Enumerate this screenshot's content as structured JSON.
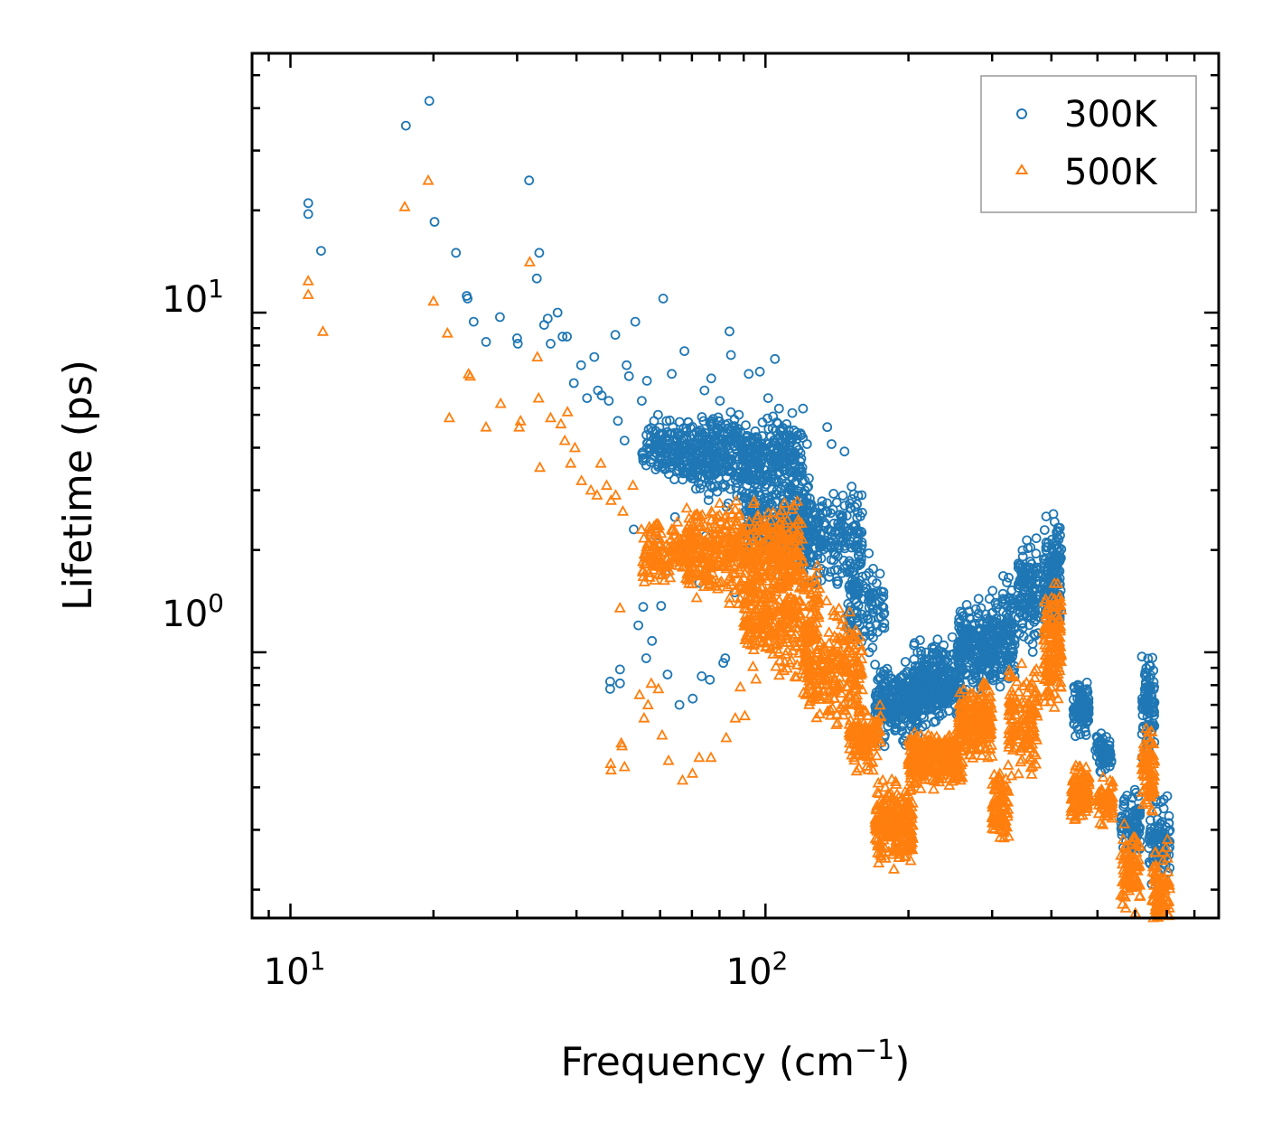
{
  "chart_data": {
    "type": "scatter",
    "title": "",
    "xlabel_main": "Frequency (cm",
    "xlabel_sup": "−1",
    "xlabel_end": ")",
    "ylabel": "Lifetime (ps)",
    "xscale": "log",
    "yscale": "log",
    "xlim": [
      8.3,
      900
    ],
    "ylim": [
      0.165,
      58
    ],
    "x_ticks": [
      {
        "base": "10",
        "exp": "1",
        "value": 10
      },
      {
        "base": "10",
        "exp": "2",
        "value": 100
      }
    ],
    "y_ticks": [
      {
        "base": "10",
        "exp": "0",
        "value": 1
      },
      {
        "base": "10",
        "exp": "1",
        "value": 10
      }
    ],
    "legend": {
      "location": "top-right",
      "entries": [
        {
          "label": "300K",
          "color": "#1f77b4",
          "marker": "circle"
        },
        {
          "label": "500K",
          "color": "#ff7f0e",
          "marker": "triangle"
        }
      ]
    },
    "series": [
      {
        "name": "300K",
        "color": "#1f77b4",
        "marker": "circle",
        "points": [
          [
            10.9,
            21
          ],
          [
            10.9,
            19.5
          ],
          [
            11.6,
            15.2
          ],
          [
            17.5,
            35.5
          ],
          [
            19.6,
            42
          ],
          [
            20.1,
            18.5
          ],
          [
            22.3,
            15
          ],
          [
            23.5,
            11.2
          ],
          [
            23.6,
            11
          ],
          [
            24.3,
            9.4
          ],
          [
            25.8,
            8.2
          ],
          [
            27.6,
            9.7
          ],
          [
            30.0,
            8.4
          ],
          [
            30.1,
            8.1
          ],
          [
            31.8,
            24.5
          ],
          [
            33.0,
            12.6
          ],
          [
            33.4,
            15
          ],
          [
            34.2,
            9.2
          ],
          [
            34.8,
            9.6
          ],
          [
            35.3,
            8.1
          ],
          [
            36.5,
            10
          ],
          [
            37.4,
            8.5
          ],
          [
            38.2,
            8.5
          ],
          [
            39.5,
            6.2
          ],
          [
            40.9,
            7
          ],
          [
            42.1,
            5.6
          ],
          [
            43.6,
            7.4
          ],
          [
            44.4,
            5.9
          ],
          [
            45.2,
            5.7
          ],
          [
            46.8,
            5.5
          ],
          [
            48.3,
            8.6
          ],
          [
            48.9,
            4.8
          ],
          [
            50.5,
            4.2
          ],
          [
            51.0,
            7
          ],
          [
            51.6,
            6.5
          ],
          [
            53.2,
            9.4
          ],
          [
            54.9,
            5.5
          ],
          [
            56.3,
            6.3
          ],
          [
            59.4,
            5
          ],
          [
            60.9,
            11
          ],
          [
            63.5,
            6.6
          ],
          [
            67.5,
            7.7
          ],
          [
            74.4,
            5.9
          ],
          [
            76.9,
            6.4
          ],
          [
            80.2,
            5.5
          ],
          [
            84.0,
            8.8
          ],
          [
            84.6,
            7.5
          ],
          [
            87.9,
            5
          ],
          [
            92.2,
            6.6
          ],
          [
            97.3,
            6.7
          ],
          [
            101.3,
            5.6
          ],
          [
            104.7,
            7.3
          ],
          [
            111.2,
            4.3
          ],
          [
            114.8,
            4.5
          ],
          [
            122.3,
            4.1
          ],
          [
            134.9,
            4.6
          ],
          [
            137.8,
            4.1
          ],
          [
            146.7,
            3.9
          ],
          [
            159.4,
            2.9
          ],
          [
            47.1,
            0.82
          ],
          [
            47.1,
            0.78
          ],
          [
            49.4,
            0.89
          ],
          [
            49.4,
            0.81
          ],
          [
            54.0,
            1.2
          ],
          [
            55.3,
            1.36
          ],
          [
            56.1,
            0.96
          ],
          [
            57.7,
            1.08
          ],
          [
            60.3,
            1.37
          ],
          [
            62.2,
            0.86
          ],
          [
            65.9,
            0.7
          ],
          [
            70.3,
            0.73
          ],
          [
            73.4,
            0.85
          ],
          [
            76.4,
            0.83
          ],
          [
            81.5,
            0.93
          ],
          [
            82.3,
            0.96
          ],
          [
            52.8,
            2.3
          ],
          [
            55.7,
            1.9
          ],
          [
            58.7,
            2.2
          ],
          [
            61.6,
            1.7
          ],
          [
            64.5,
            2.5
          ],
          [
            68.6,
            2.0
          ],
          [
            72.6,
            1.6
          ],
          [
            74.9,
            2.2
          ],
          [
            79.4,
            1.8
          ],
          [
            86.2,
            1.5
          ],
          [
            91.0,
            1.4
          ],
          [
            147.0,
            1.25
          ],
          [
            151.0,
            1.1
          ],
          [
            165.3,
            1.0
          ],
          [
            170.1,
            0.92
          ]
        ],
        "clusters": [
          {
            "x": [
              55,
              68
            ],
            "y": [
              3.0,
              5.2
            ],
            "n": 140
          },
          {
            "x": [
              68,
              120
            ],
            "y": [
              2.6,
              5.5
            ],
            "n": 520
          },
          {
            "x": [
              90,
              125
            ],
            "y": [
              1.6,
              3.8
            ],
            "n": 260
          },
          {
            "x": [
              118,
              160
            ],
            "y": [
              1.4,
              3.3
            ],
            "n": 220
          },
          {
            "x": [
              148,
              178
            ],
            "y": [
              0.9,
              2.1
            ],
            "n": 110
          },
          {
            "x": [
              170,
              210
            ],
            "y": [
              0.5,
              1.0
            ],
            "n": 240
          },
          {
            "x": [
              205,
              260
            ],
            "y": [
              0.58,
              1.15
            ],
            "n": 320
          },
          {
            "x": [
              255,
              305
            ],
            "y": [
              0.7,
              1.5
            ],
            "n": 220
          },
          {
            "x": [
              300,
              335
            ],
            "y": [
              0.7,
              1.8
            ],
            "n": 130
          },
          {
            "x": [
              340,
              375
            ],
            "y": [
              0.9,
              2.4
            ],
            "n": 130
          },
          {
            "x": [
              385,
              420
            ],
            "y": [
              1.0,
              2.8
            ],
            "n": 150
          },
          {
            "x": [
              445,
              480
            ],
            "y": [
              0.55,
              0.85
            ],
            "n": 110
          },
          {
            "x": [
              495,
              535
            ],
            "y": [
              0.42,
              0.62
            ],
            "n": 60
          },
          {
            "x": [
              560,
              615
            ],
            "y": [
              0.24,
              0.42
            ],
            "n": 90
          },
          {
            "x": [
              620,
              660
            ],
            "y": [
              0.45,
              1.1
            ],
            "n": 90
          },
          {
            "x": [
              640,
              710
            ],
            "y": [
              0.2,
              0.4
            ],
            "n": 90
          }
        ]
      },
      {
        "name": "500K",
        "color": "#ff7f0e",
        "marker": "triangle",
        "points": [
          [
            10.9,
            12.4
          ],
          [
            10.9,
            11.3
          ],
          [
            11.7,
            8.8
          ],
          [
            17.4,
            20.5
          ],
          [
            19.5,
            24.5
          ],
          [
            20.0,
            10.8
          ],
          [
            21.4,
            8.7
          ],
          [
            23.7,
            6.6
          ],
          [
            23.9,
            6.5
          ],
          [
            21.6,
            4.9
          ],
          [
            25.8,
            4.6
          ],
          [
            27.7,
            5.4
          ],
          [
            30.3,
            4.6
          ],
          [
            30.5,
            4.8
          ],
          [
            31.9,
            14.1
          ],
          [
            33.1,
            7.4
          ],
          [
            33.3,
            5.6
          ],
          [
            33.5,
            3.5
          ],
          [
            35.3,
            4.9
          ],
          [
            37.1,
            4.7
          ],
          [
            37.8,
            4.2
          ],
          [
            38.3,
            5.1
          ],
          [
            38.9,
            3.6
          ],
          [
            39.7,
            4.0
          ],
          [
            41.0,
            3.2
          ],
          [
            42.9,
            3.0
          ],
          [
            44.2,
            2.9
          ],
          [
            45.0,
            3.6
          ],
          [
            46.3,
            3.1
          ],
          [
            47.3,
            2.8
          ],
          [
            48.4,
            2.9
          ],
          [
            50.1,
            2.6
          ],
          [
            52.6,
            3.1
          ],
          [
            54.8,
            2.3
          ],
          [
            57.0,
            2.1
          ],
          [
            59.8,
            1.9
          ],
          [
            63.5,
            2.3
          ],
          [
            47.2,
            0.47
          ],
          [
            47.3,
            0.45
          ],
          [
            49.7,
            0.54
          ],
          [
            49.9,
            0.53
          ],
          [
            50.5,
            0.46
          ],
          [
            49.4,
            1.35
          ],
          [
            54.3,
            0.75
          ],
          [
            55.5,
            0.64
          ],
          [
            56.6,
            0.7
          ],
          [
            57.5,
            0.81
          ],
          [
            59.5,
            0.78
          ],
          [
            60.6,
            0.57
          ],
          [
            62.5,
            0.48
          ],
          [
            66.9,
            0.42
          ],
          [
            70.2,
            0.44
          ],
          [
            72.5,
            0.49
          ],
          [
            76.8,
            0.49
          ],
          [
            82.7,
            0.56
          ],
          [
            86.4,
            0.64
          ],
          [
            90.5,
            0.65
          ],
          [
            88.5,
            0.79
          ]
        ],
        "clusters": [
          {
            "x": [
              55,
              70
            ],
            "y": [
              1.5,
              2.6
            ],
            "n": 130
          },
          {
            "x": [
              68,
              120
            ],
            "y": [
              1.3,
              3.0
            ],
            "n": 520
          },
          {
            "x": [
              90,
              130
            ],
            "y": [
              0.75,
              2.2
            ],
            "n": 320
          },
          {
            "x": [
              120,
              160
            ],
            "y": [
              0.55,
              1.5
            ],
            "n": 260
          },
          {
            "x": [
              150,
              175
            ],
            "y": [
              0.42,
              0.75
            ],
            "n": 130
          },
          {
            "x": [
              170,
              205
            ],
            "y": [
              0.22,
              0.45
            ],
            "n": 260
          },
          {
            "x": [
              200,
              260
            ],
            "y": [
              0.38,
              0.62
            ],
            "n": 330
          },
          {
            "x": [
              255,
              300
            ],
            "y": [
              0.45,
              0.85
            ],
            "n": 220
          },
          {
            "x": [
              300,
              325
            ],
            "y": [
              0.25,
              0.5
            ],
            "n": 100
          },
          {
            "x": [
              325,
              375
            ],
            "y": [
              0.4,
              1.0
            ],
            "n": 150
          },
          {
            "x": [
              385,
              420
            ],
            "y": [
              0.6,
              1.8
            ],
            "n": 150
          },
          {
            "x": [
              440,
              480
            ],
            "y": [
              0.3,
              0.5
            ],
            "n": 120
          },
          {
            "x": [
              500,
              540
            ],
            "y": [
              0.3,
              0.45
            ],
            "n": 70
          },
          {
            "x": [
              560,
              615
            ],
            "y": [
              0.16,
              0.32
            ],
            "n": 90
          },
          {
            "x": [
              620,
              660
            ],
            "y": [
              0.3,
              0.65
            ],
            "n": 90
          },
          {
            "x": [
              650,
              710
            ],
            "y": [
              0.13,
              0.3
            ],
            "n": 90
          }
        ]
      }
    ]
  }
}
